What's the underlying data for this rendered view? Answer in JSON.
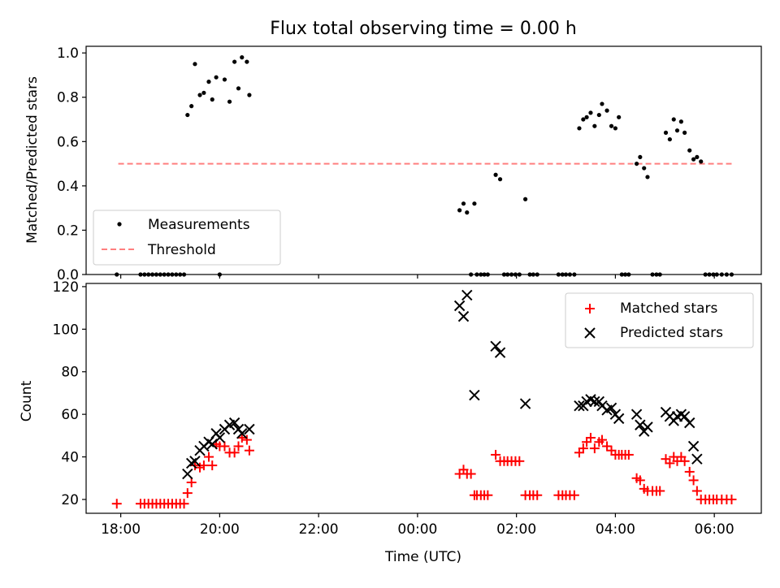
{
  "title": "Flux total observing time = 0.00 h",
  "colors": {
    "measurement": "#000000",
    "threshold": "#ff7f7f",
    "matched": "#ff0000",
    "predicted": "#000000"
  },
  "chart_data": [
    {
      "type": "scatter",
      "title": "Flux total observing time = 0.00 h",
      "ylabel": "Matched/Predicted stars",
      "xlim": [
        -6.7,
        6.95
      ],
      "ylim": [
        0,
        1.03
      ],
      "yticks": [
        0.0,
        0.2,
        0.4,
        0.6,
        0.8,
        1.0
      ],
      "ytick_labels": [
        "0.0",
        "0.2",
        "0.4",
        "0.6",
        "0.8",
        "1.0"
      ],
      "grid": false,
      "legend": {
        "position": "lower-left",
        "entries": [
          "Measurements",
          "Threshold"
        ]
      },
      "threshold": {
        "name": "Threshold",
        "y": 0.5,
        "x_range": [
          -6.05,
          6.35
        ]
      },
      "series": [
        {
          "name": "Measurements",
          "points": [
            [
              -6.08,
              0.0
            ],
            [
              -5.6,
              0.0
            ],
            [
              -5.52,
              0.0
            ],
            [
              -5.44,
              0.0
            ],
            [
              -5.36,
              0.0
            ],
            [
              -5.28,
              0.0
            ],
            [
              -5.2,
              0.0
            ],
            [
              -5.12,
              0.0
            ],
            [
              -5.04,
              0.0
            ],
            [
              -4.96,
              0.0
            ],
            [
              -4.88,
              0.0
            ],
            [
              -4.8,
              0.0
            ],
            [
              -4.72,
              0.0
            ],
            [
              -4.65,
              0.72
            ],
            [
              -4.57,
              0.76
            ],
            [
              -4.5,
              0.95
            ],
            [
              -4.4,
              0.81
            ],
            [
              -4.32,
              0.82
            ],
            [
              -4.22,
              0.87
            ],
            [
              -4.15,
              0.79
            ],
            [
              -4.07,
              0.89
            ],
            [
              -4.0,
              0.0
            ],
            [
              -3.9,
              0.88
            ],
            [
              -3.8,
              0.78
            ],
            [
              -3.7,
              0.96
            ],
            [
              -3.62,
              0.84
            ],
            [
              -3.55,
              0.98
            ],
            [
              -3.45,
              0.96
            ],
            [
              -3.4,
              0.81
            ],
            [
              0.85,
              0.29
            ],
            [
              0.93,
              0.32
            ],
            [
              1.0,
              0.28
            ],
            [
              1.08,
              0.0
            ],
            [
              1.15,
              0.32
            ],
            [
              1.2,
              0.0
            ],
            [
              1.28,
              0.0
            ],
            [
              1.35,
              0.0
            ],
            [
              1.42,
              0.0
            ],
            [
              1.58,
              0.45
            ],
            [
              1.67,
              0.43
            ],
            [
              1.75,
              0.0
            ],
            [
              1.82,
              0.0
            ],
            [
              1.9,
              0.0
            ],
            [
              1.98,
              0.0
            ],
            [
              2.06,
              0.0
            ],
            [
              2.18,
              0.34
            ],
            [
              2.27,
              0.0
            ],
            [
              2.34,
              0.0
            ],
            [
              2.42,
              0.0
            ],
            [
              2.85,
              0.0
            ],
            [
              2.93,
              0.0
            ],
            [
              3.0,
              0.0
            ],
            [
              3.08,
              0.0
            ],
            [
              3.17,
              0.0
            ],
            [
              3.27,
              0.66
            ],
            [
              3.35,
              0.7
            ],
            [
              3.42,
              0.71
            ],
            [
              3.5,
              0.73
            ],
            [
              3.58,
              0.67
            ],
            [
              3.67,
              0.72
            ],
            [
              3.73,
              0.77
            ],
            [
              3.83,
              0.74
            ],
            [
              3.92,
              0.67
            ],
            [
              4.0,
              0.66
            ],
            [
              4.07,
              0.71
            ],
            [
              4.13,
              0.0
            ],
            [
              4.2,
              0.0
            ],
            [
              4.27,
              0.0
            ],
            [
              4.43,
              0.5
            ],
            [
              4.5,
              0.53
            ],
            [
              4.58,
              0.48
            ],
            [
              4.65,
              0.44
            ],
            [
              4.75,
              0.0
            ],
            [
              4.83,
              0.0
            ],
            [
              4.9,
              0.0
            ],
            [
              5.02,
              0.64
            ],
            [
              5.1,
              0.61
            ],
            [
              5.18,
              0.7
            ],
            [
              5.25,
              0.65
            ],
            [
              5.33,
              0.69
            ],
            [
              5.4,
              0.64
            ],
            [
              5.5,
              0.56
            ],
            [
              5.58,
              0.52
            ],
            [
              5.65,
              0.53
            ],
            [
              5.73,
              0.51
            ],
            [
              5.82,
              0.0
            ],
            [
              5.9,
              0.0
            ],
            [
              5.98,
              0.0
            ],
            [
              6.05,
              0.0
            ],
            [
              6.15,
              0.0
            ],
            [
              6.25,
              0.0
            ],
            [
              6.35,
              0.0
            ]
          ]
        }
      ]
    },
    {
      "type": "scatter",
      "xlabel": "Time (UTC)",
      "ylabel": "Count",
      "xlim": [
        -6.7,
        6.95
      ],
      "ylim": [
        13.5,
        121.5
      ],
      "xticks": [
        -6,
        -4,
        -2,
        0,
        2,
        4,
        6
      ],
      "xtick_labels": [
        "18:00",
        "20:00",
        "22:00",
        "00:00",
        "02:00",
        "04:00",
        "06:00"
      ],
      "yticks": [
        20,
        40,
        60,
        80,
        100,
        120
      ],
      "ytick_labels": [
        "20",
        "40",
        "60",
        "80",
        "100",
        "120"
      ],
      "grid": false,
      "legend": {
        "position": "top-right",
        "entries": [
          "Matched stars",
          "Predicted stars"
        ]
      },
      "series": [
        {
          "name": "Matched stars",
          "marker": "plus",
          "points": [
            [
              -6.08,
              18
            ],
            [
              -5.6,
              18
            ],
            [
              -5.52,
              18
            ],
            [
              -5.44,
              18
            ],
            [
              -5.36,
              18
            ],
            [
              -5.28,
              18
            ],
            [
              -5.2,
              18
            ],
            [
              -5.12,
              18
            ],
            [
              -5.04,
              18
            ],
            [
              -4.96,
              18
            ],
            [
              -4.88,
              18
            ],
            [
              -4.8,
              18
            ],
            [
              -4.72,
              18
            ],
            [
              -4.65,
              23
            ],
            [
              -4.57,
              28
            ],
            [
              -4.5,
              36
            ],
            [
              -4.4,
              35
            ],
            [
              -4.32,
              36
            ],
            [
              -4.22,
              40
            ],
            [
              -4.15,
              36
            ],
            [
              -4.07,
              46
            ],
            [
              -4.0,
              45
            ],
            [
              -3.9,
              45
            ],
            [
              -3.8,
              42
            ],
            [
              -3.7,
              42
            ],
            [
              -3.62,
              45
            ],
            [
              -3.55,
              49
            ],
            [
              -3.45,
              48
            ],
            [
              -3.4,
              43
            ],
            [
              0.85,
              32
            ],
            [
              0.93,
              34
            ],
            [
              1.0,
              32
            ],
            [
              1.08,
              32
            ],
            [
              1.15,
              22
            ],
            [
              1.2,
              22
            ],
            [
              1.28,
              22
            ],
            [
              1.35,
              22
            ],
            [
              1.42,
              22
            ],
            [
              1.58,
              41
            ],
            [
              1.67,
              38
            ],
            [
              1.75,
              38
            ],
            [
              1.82,
              38
            ],
            [
              1.9,
              38
            ],
            [
              1.98,
              38
            ],
            [
              2.06,
              38
            ],
            [
              2.18,
              22
            ],
            [
              2.27,
              22
            ],
            [
              2.34,
              22
            ],
            [
              2.42,
              22
            ],
            [
              2.85,
              22
            ],
            [
              2.93,
              22
            ],
            [
              3.0,
              22
            ],
            [
              3.08,
              22
            ],
            [
              3.17,
              22
            ],
            [
              3.27,
              42
            ],
            [
              3.35,
              44
            ],
            [
              3.42,
              47
            ],
            [
              3.5,
              49
            ],
            [
              3.58,
              44
            ],
            [
              3.67,
              47
            ],
            [
              3.73,
              48
            ],
            [
              3.83,
              45
            ],
            [
              3.92,
              43
            ],
            [
              4.0,
              41
            ],
            [
              4.07,
              41
            ],
            [
              4.13,
              41
            ],
            [
              4.2,
              41
            ],
            [
              4.27,
              41
            ],
            [
              4.43,
              30
            ],
            [
              4.5,
              29
            ],
            [
              4.58,
              25
            ],
            [
              4.65,
              24
            ],
            [
              4.75,
              24
            ],
            [
              4.83,
              24
            ],
            [
              4.9,
              24
            ],
            [
              5.02,
              39
            ],
            [
              5.1,
              37
            ],
            [
              5.18,
              40
            ],
            [
              5.25,
              38
            ],
            [
              5.33,
              40
            ],
            [
              5.4,
              38
            ],
            [
              5.5,
              33
            ],
            [
              5.58,
              29
            ],
            [
              5.65,
              24
            ],
            [
              5.73,
              20
            ],
            [
              5.82,
              20
            ],
            [
              5.9,
              20
            ],
            [
              5.98,
              20
            ],
            [
              6.05,
              20
            ],
            [
              6.15,
              20
            ],
            [
              6.25,
              20
            ],
            [
              6.35,
              20
            ]
          ]
        },
        {
          "name": "Predicted stars",
          "marker": "x",
          "points": [
            [
              -4.65,
              32
            ],
            [
              -4.57,
              37
            ],
            [
              -4.5,
              38
            ],
            [
              -4.4,
              43
            ],
            [
              -4.32,
              45
            ],
            [
              -4.22,
              47
            ],
            [
              -4.15,
              46
            ],
            [
              -4.07,
              51
            ],
            [
              -4.0,
              49
            ],
            [
              -3.9,
              53
            ],
            [
              -3.8,
              55
            ],
            [
              -3.7,
              56
            ],
            [
              -3.62,
              53
            ],
            [
              -3.55,
              51
            ],
            [
              -3.4,
              53
            ],
            [
              0.85,
              111
            ],
            [
              0.93,
              106
            ],
            [
              1.0,
              116
            ],
            [
              1.15,
              69
            ],
            [
              1.58,
              92
            ],
            [
              1.67,
              89
            ],
            [
              2.18,
              65
            ],
            [
              3.27,
              64
            ],
            [
              3.35,
              64
            ],
            [
              3.42,
              66
            ],
            [
              3.5,
              67
            ],
            [
              3.58,
              66
            ],
            [
              3.67,
              66
            ],
            [
              3.73,
              64
            ],
            [
              3.83,
              62
            ],
            [
              3.92,
              63
            ],
            [
              4.0,
              60
            ],
            [
              4.07,
              58
            ],
            [
              4.43,
              60
            ],
            [
              4.5,
              55
            ],
            [
              4.58,
              52
            ],
            [
              4.65,
              54
            ],
            [
              5.02,
              61
            ],
            [
              5.1,
              59
            ],
            [
              5.18,
              57
            ],
            [
              5.25,
              59
            ],
            [
              5.33,
              60
            ],
            [
              5.4,
              59
            ],
            [
              5.5,
              56
            ],
            [
              5.58,
              45
            ],
            [
              5.65,
              39
            ]
          ]
        }
      ]
    }
  ]
}
